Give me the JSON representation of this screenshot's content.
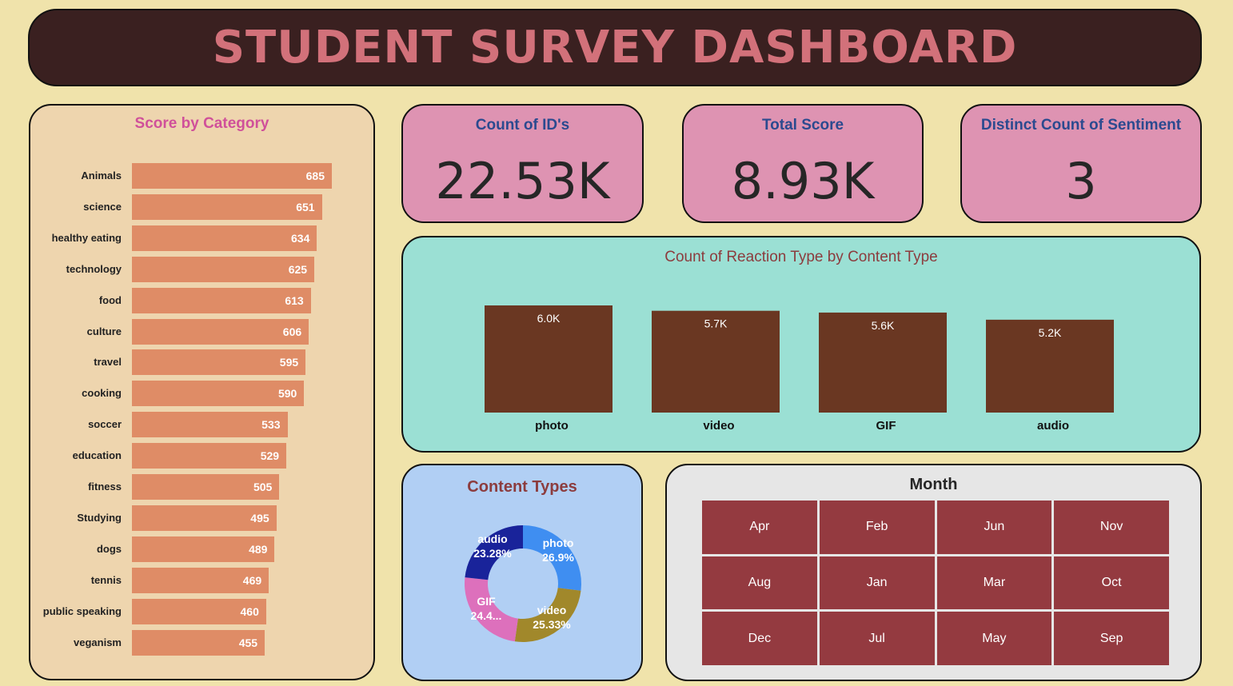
{
  "header": {
    "title": "STUDENT SURVEY DASHBOARD"
  },
  "score_by_category": {
    "title": "Score by Category",
    "chart_data": {
      "type": "bar",
      "orientation": "horizontal",
      "title": "Score by Category",
      "categories": [
        "Animals",
        "science",
        "healthy eating",
        "technology",
        "food",
        "culture",
        "travel",
        "cooking",
        "soccer",
        "education",
        "fitness",
        "Studying",
        "dogs",
        "tennis",
        "public speaking",
        "veganism"
      ],
      "values": [
        685,
        651,
        634,
        625,
        613,
        606,
        595,
        590,
        533,
        529,
        505,
        495,
        489,
        469,
        460,
        455
      ],
      "bar_color": "#df8c66"
    }
  },
  "kpis": [
    {
      "label": "Count of ID's",
      "value": "22.53K"
    },
    {
      "label": "Total Score",
      "value": "8.93K"
    },
    {
      "label": "Distinct Count of Sentiment",
      "value": "3"
    }
  ],
  "reaction_chart": {
    "title": "Count of Reaction Type by Content Type",
    "chart_data": {
      "type": "bar",
      "title": "Count of Reaction Type by Content Type",
      "categories": [
        "photo",
        "video",
        "GIF",
        "audio"
      ],
      "values": [
        6000,
        5700,
        5600,
        5200
      ],
      "data_labels": [
        "6.0K",
        "5.7K",
        "5.6K",
        "5.2K"
      ],
      "bar_color": "#6a3722"
    }
  },
  "content_types": {
    "title": "Content Types",
    "chart_data": {
      "type": "pie",
      "donut": true,
      "title": "Content Types",
      "slices": [
        {
          "name": "photo",
          "value": 26.9,
          "label": "26.9%",
          "color": "#3f8ef1"
        },
        {
          "name": "video",
          "value": 25.33,
          "label": "25.33%",
          "color": "#a1882b"
        },
        {
          "name": "GIF",
          "value": 24.49,
          "label": "24.4...",
          "color": "#dd70bc"
        },
        {
          "name": "audio",
          "value": 23.28,
          "label": "23.28%",
          "color": "#19239a"
        }
      ]
    }
  },
  "month_slicer": {
    "title": "Month",
    "months": [
      "Apr",
      "Feb",
      "Jun",
      "Nov",
      "Aug",
      "Jan",
      "Mar",
      "Oct",
      "Dec",
      "Jul",
      "May",
      "Sep"
    ]
  }
}
